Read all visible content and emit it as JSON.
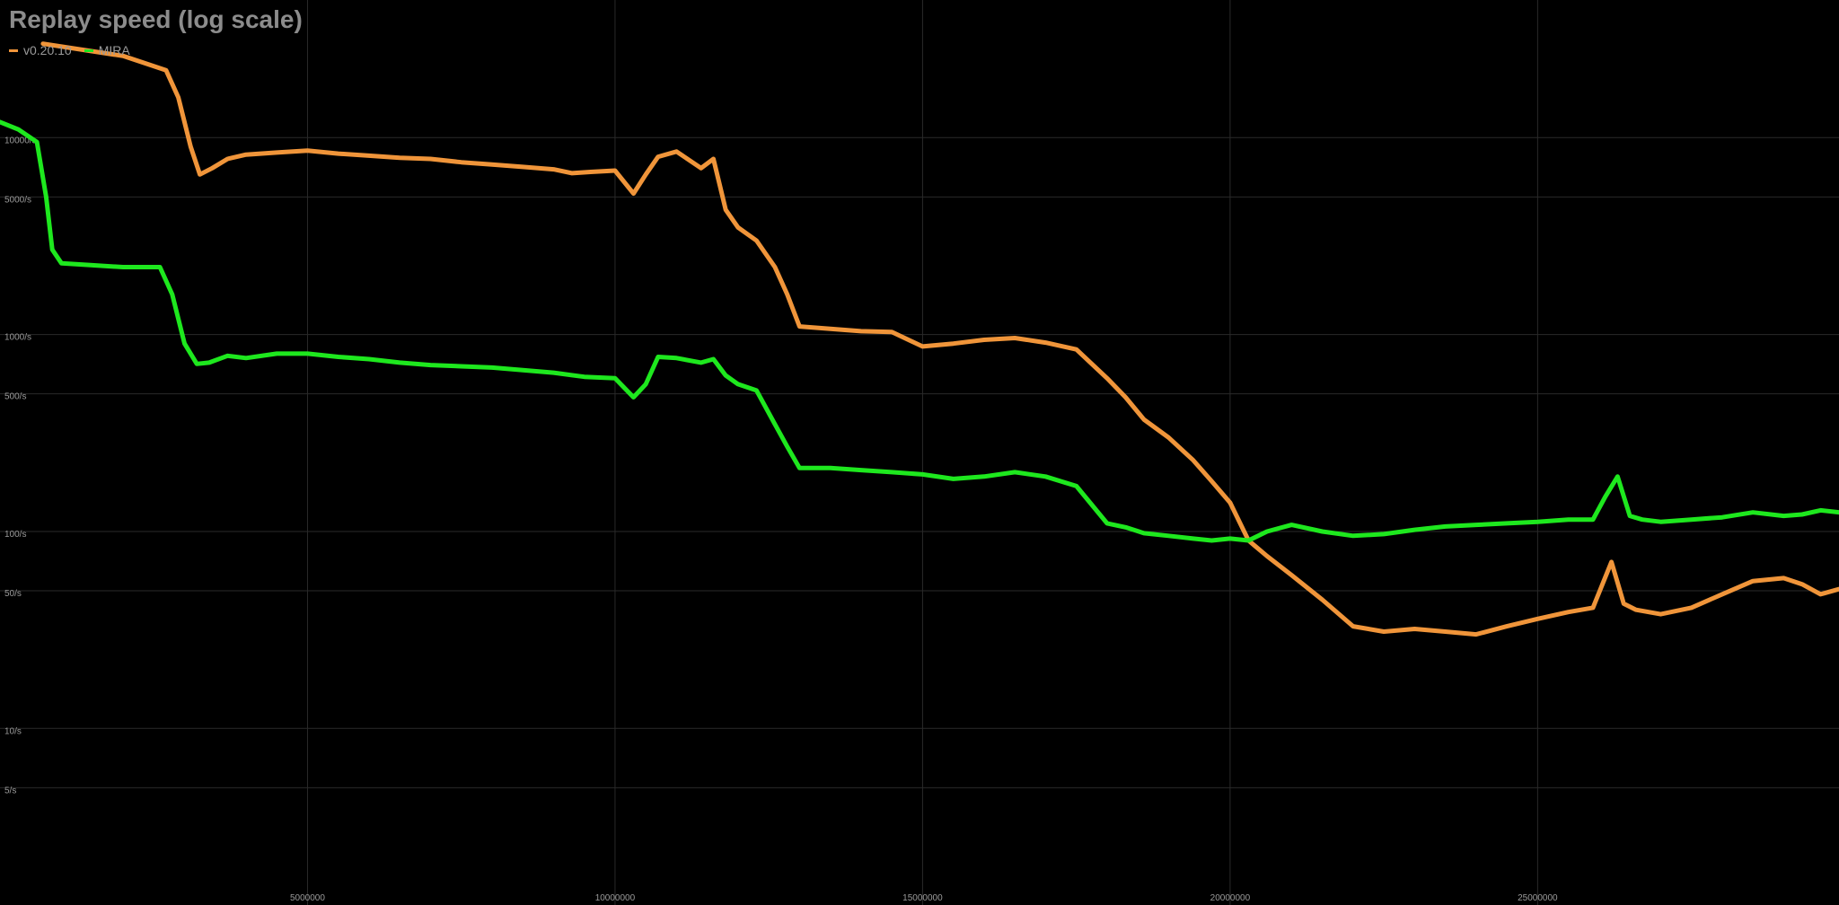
{
  "chart_data": {
    "type": "line",
    "title": "Replay speed (log scale)",
    "xlabel": "",
    "ylabel": "",
    "y_scale": "log",
    "x_range": [
      0,
      29900000
    ],
    "y_range": [
      1.5,
      50000
    ],
    "grid": true,
    "legend_position": "top-left",
    "x_ticks": [
      {
        "value": 5000000,
        "label": "5000000"
      },
      {
        "value": 10000000,
        "label": "10000000"
      },
      {
        "value": 15000000,
        "label": "15000000"
      },
      {
        "value": 20000000,
        "label": "20000000"
      },
      {
        "value": 25000000,
        "label": "25000000"
      }
    ],
    "y_ticks": [
      {
        "value": 10000,
        "label": "10000/s"
      },
      {
        "value": 5000,
        "label": "5000/s"
      },
      {
        "value": 1000,
        "label": "1000/s"
      },
      {
        "value": 500,
        "label": "500/s"
      },
      {
        "value": 100,
        "label": "100/s"
      },
      {
        "value": 50,
        "label": "50/s"
      },
      {
        "value": 10,
        "label": "10/s"
      },
      {
        "value": 5,
        "label": "5/s"
      }
    ],
    "series": [
      {
        "name": "v0.20.10",
        "color": "#f0953a",
        "x": [
          700000,
          2000000,
          2700000,
          2900000,
          3100000,
          3250000,
          3450000,
          3700000,
          4000000,
          4500000,
          5000000,
          5500000,
          6000000,
          6500000,
          7000000,
          7500000,
          8000000,
          8500000,
          9000000,
          9300000,
          9600000,
          10000000,
          10300000,
          10500000,
          10700000,
          11000000,
          11400000,
          11600000,
          11800000,
          12000000,
          12300000,
          12600000,
          12800000,
          13000000,
          13500000,
          14000000,
          14500000,
          15000000,
          15500000,
          16000000,
          16500000,
          17000000,
          17500000,
          18000000,
          18300000,
          18600000,
          19000000,
          19400000,
          19700000,
          20000000,
          20300000,
          20600000,
          21000000,
          21500000,
          22000000,
          22500000,
          23000000,
          23500000,
          24000000,
          24500000,
          25000000,
          25500000,
          25900000,
          26200000,
          26400000,
          26600000,
          27000000,
          27500000,
          28000000,
          28500000,
          29000000,
          29300000,
          29600000,
          29900000
        ],
        "values": [
          30000,
          26000,
          22000,
          16000,
          9000,
          6500,
          7000,
          7800,
          8200,
          8400,
          8600,
          8300,
          8100,
          7900,
          7800,
          7500,
          7300,
          7100,
          6900,
          6600,
          6700,
          6800,
          5200,
          6500,
          8000,
          8500,
          7000,
          7800,
          4300,
          3500,
          3000,
          2200,
          1600,
          1100,
          1070,
          1040,
          1030,
          870,
          900,
          940,
          960,
          910,
          840,
          600,
          480,
          370,
          300,
          230,
          180,
          140,
          90,
          75,
          60,
          45,
          33,
          31,
          32,
          31,
          30,
          33,
          36,
          39,
          41,
          70,
          43,
          40,
          38,
          41,
          48,
          56,
          58,
          54,
          48,
          51
        ]
      },
      {
        "name": "MIRA",
        "color": "#1ee81e",
        "x": [
          0,
          300000,
          600000,
          750000,
          850000,
          1000000,
          1500000,
          2000000,
          2600000,
          2800000,
          3000000,
          3200000,
          3400000,
          3700000,
          4000000,
          4500000,
          5000000,
          5500000,
          6000000,
          6500000,
          7000000,
          7500000,
          8000000,
          8500000,
          9000000,
          9500000,
          10000000,
          10300000,
          10500000,
          10700000,
          11000000,
          11400000,
          11600000,
          11800000,
          12000000,
          12300000,
          12600000,
          12800000,
          13000000,
          13500000,
          14000000,
          14500000,
          15000000,
          15500000,
          16000000,
          16500000,
          17000000,
          17500000,
          18000000,
          18300000,
          18600000,
          19000000,
          19400000,
          19700000,
          20000000,
          20300000,
          20600000,
          21000000,
          21500000,
          22000000,
          22500000,
          23000000,
          23500000,
          24000000,
          24500000,
          25000000,
          25500000,
          25900000,
          26100000,
          26300000,
          26500000,
          26700000,
          27000000,
          27500000,
          28000000,
          28500000,
          29000000,
          29300000,
          29600000,
          29900000
        ],
        "values": [
          12000,
          11000,
          9500,
          5000,
          2700,
          2300,
          2250,
          2200,
          2200,
          1600,
          900,
          710,
          720,
          780,
          760,
          800,
          800,
          770,
          750,
          720,
          700,
          690,
          680,
          660,
          640,
          610,
          600,
          480,
          560,
          770,
          760,
          720,
          750,
          620,
          560,
          520,
          350,
          270,
          210,
          210,
          205,
          200,
          195,
          185,
          190,
          200,
          190,
          170,
          110,
          105,
          98,
          95,
          92,
          90,
          92,
          90,
          100,
          108,
          100,
          95,
          97,
          102,
          106,
          108,
          110,
          112,
          115,
          115,
          150,
          190,
          120,
          115,
          112,
          115,
          118,
          125,
          120,
          122,
          128,
          125
        ]
      }
    ]
  }
}
